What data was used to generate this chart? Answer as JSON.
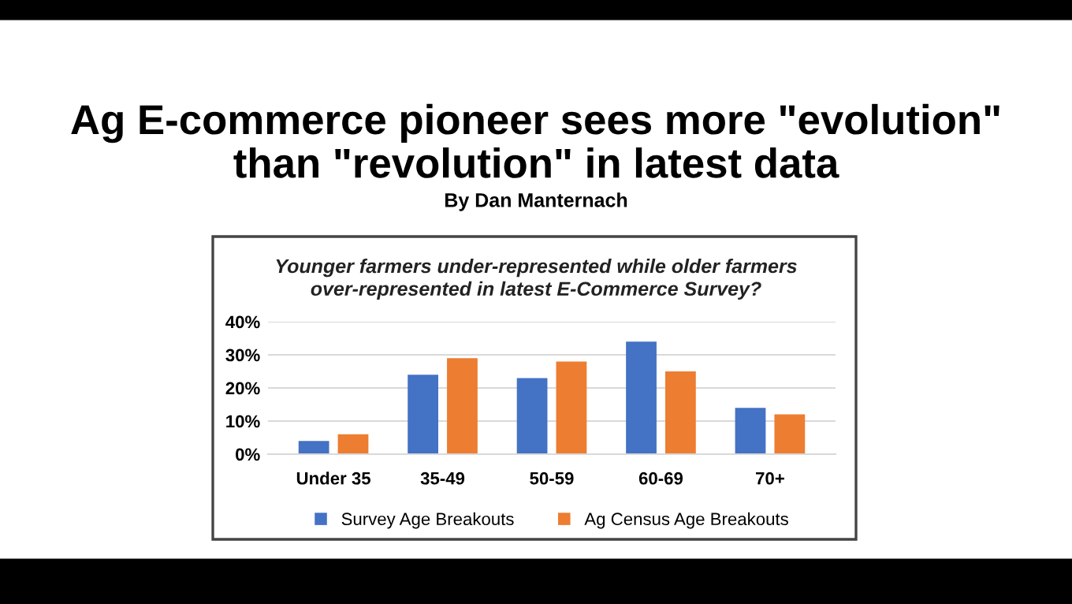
{
  "chart_data": {
    "type": "bar",
    "title": "Ag E-commerce pioneer sees more \"evolution\"\nthan \"revolution\" in latest data",
    "subtitle": "By Dan Manternach",
    "annotations": [
      "Younger farmers under-represented while older farmers\nover-represented in latest E-Commerce Survey?"
    ],
    "categories": [
      "Under 35",
      "35-49",
      "50-59",
      "60-69",
      "70+"
    ],
    "series": [
      {
        "name": "Survey Age Breakouts",
        "color": "#4472c4",
        "values": [
          4,
          24,
          23,
          34,
          14
        ]
      },
      {
        "name": "Ag Census Age Breakouts",
        "color": "#ed7d31",
        "values": [
          6,
          29,
          28,
          25,
          12
        ]
      }
    ],
    "ylim": [
      0,
      40
    ],
    "yticks": [
      {
        "value": 0,
        "label": "0%"
      },
      {
        "value": 10,
        "label": "10%"
      },
      {
        "value": 20,
        "label": "20%"
      },
      {
        "value": 30,
        "label": "30%"
      },
      {
        "value": 40,
        "label": "40%"
      }
    ],
    "grid": "y",
    "legend": "bottom"
  }
}
